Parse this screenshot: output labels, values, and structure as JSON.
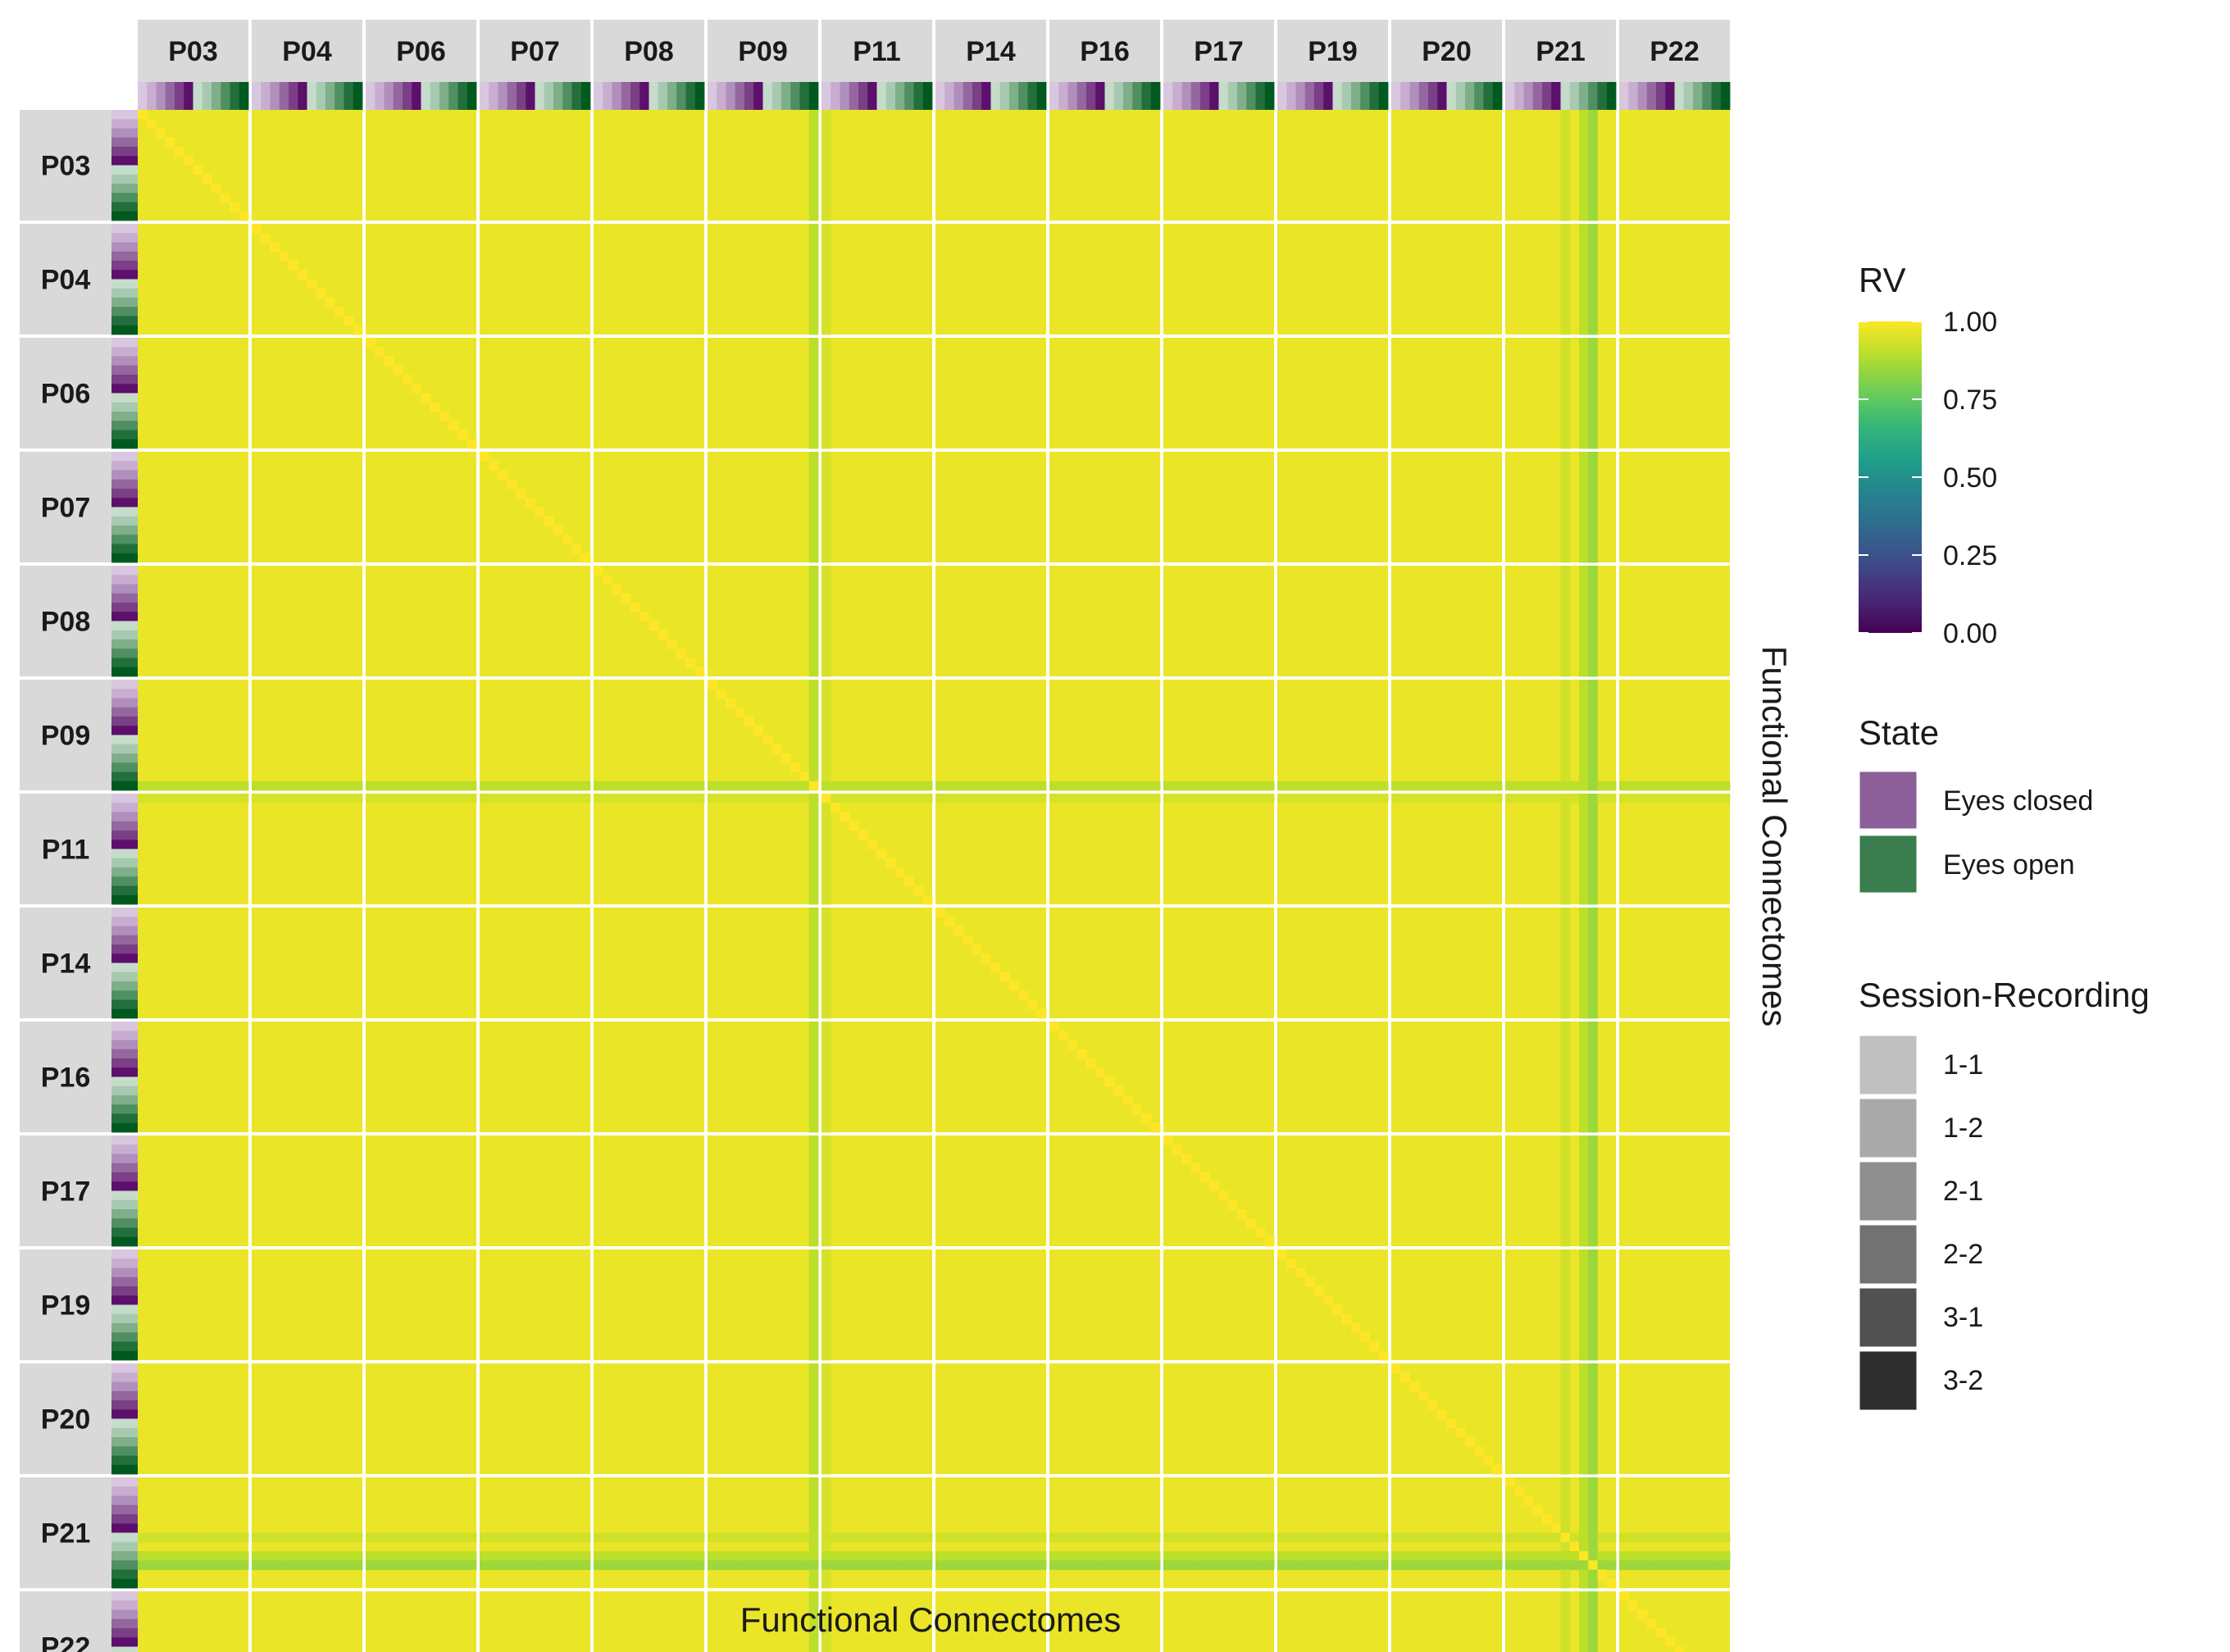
{
  "chart_data": {
    "type": "heatmap",
    "title": "",
    "xlabel": "Functional Connectomes",
    "ylabel": "Functional Connectomes",
    "participants": [
      "P03",
      "P04",
      "P06",
      "P07",
      "P08",
      "P09",
      "P11",
      "P14",
      "P16",
      "P17",
      "P19",
      "P20",
      "P21",
      "P22"
    ],
    "cells_per_participant": 12,
    "annotation_order": [
      {
        "state": "Eyes closed",
        "session_recording": "1-1"
      },
      {
        "state": "Eyes closed",
        "session_recording": "1-2"
      },
      {
        "state": "Eyes closed",
        "session_recording": "2-1"
      },
      {
        "state": "Eyes closed",
        "session_recording": "2-2"
      },
      {
        "state": "Eyes closed",
        "session_recording": "3-1"
      },
      {
        "state": "Eyes closed",
        "session_recording": "3-2"
      },
      {
        "state": "Eyes open",
        "session_recording": "1-1"
      },
      {
        "state": "Eyes open",
        "session_recording": "1-2"
      },
      {
        "state": "Eyes open",
        "session_recording": "2-1"
      },
      {
        "state": "Eyes open",
        "session_recording": "2-2"
      },
      {
        "state": "Eyes open",
        "session_recording": "3-1"
      },
      {
        "state": "Eyes open",
        "session_recording": "3-2"
      }
    ],
    "value_summary": {
      "typical_rv": 0.97,
      "diagonal_rv": 1.0,
      "lower_rv_scans": [
        {
          "participant": "P09",
          "index": 11,
          "rv": 0.9
        },
        {
          "participant": "P11",
          "index": 0,
          "rv": 0.94
        },
        {
          "participant": "P21",
          "index": 6,
          "rv": 0.93
        },
        {
          "participant": "P21",
          "index": 8,
          "rv": 0.9
        },
        {
          "participant": "P21",
          "index": 9,
          "rv": 0.85
        }
      ]
    },
    "legend": {
      "rv": {
        "title": "RV",
        "range": [
          0,
          1
        ],
        "ticks": [
          "1.00",
          "0.75",
          "0.50",
          "0.25",
          "0.00"
        ],
        "tick_values": [
          1.0,
          0.75,
          0.5,
          0.25,
          0.0
        ],
        "colormap": "viridis"
      },
      "state": {
        "title": "State",
        "items": [
          {
            "label": "Eyes closed",
            "color": "#8c5f9a"
          },
          {
            "label": "Eyes open",
            "color": "#3a7d4e"
          }
        ]
      },
      "session": {
        "title": "Session-Recording",
        "items": [
          {
            "label": "1-1",
            "color": "#c0c0c0"
          },
          {
            "label": "1-2",
            "color": "#a9a9a9"
          },
          {
            "label": "2-1",
            "color": "#8f8f8f"
          },
          {
            "label": "2-2",
            "color": "#727272"
          },
          {
            "label": "3-1",
            "color": "#515151"
          },
          {
            "label": "3-2",
            "color": "#2e2e2e"
          }
        ]
      }
    },
    "annotation_colors": {
      "eyes_closed": [
        "#d9c6df",
        "#c8add1",
        "#b08fbd",
        "#94679e",
        "#7a3f86",
        "#5c0f6b"
      ],
      "eyes_open": [
        "#c6dccb",
        "#a7c9af",
        "#7fae8a",
        "#4f8f61",
        "#236f3c",
        "#005a20"
      ]
    },
    "strip_background": "#d9d9d9",
    "panel_gap_color": "#ffffff"
  }
}
